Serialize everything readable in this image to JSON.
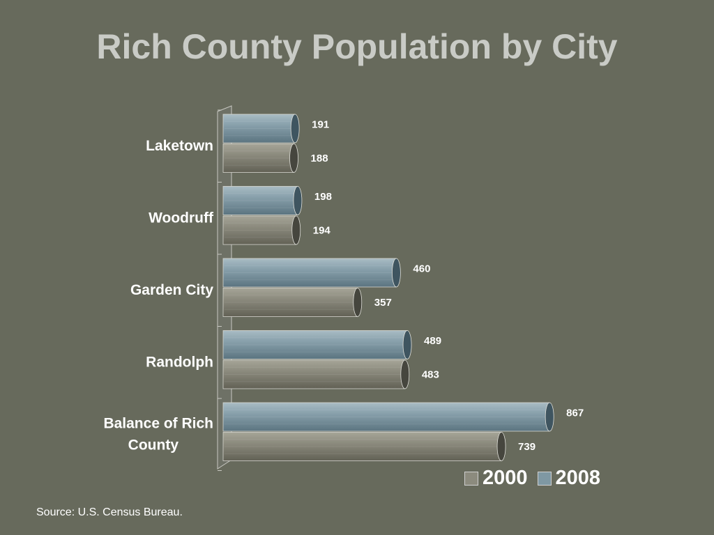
{
  "title": "Rich County Population by City",
  "source": "Source: U.S. Census Bureau.",
  "chart_data": {
    "type": "bar",
    "orientation": "horizontal",
    "style": "3d-cylinder",
    "categories": [
      "Laketown",
      "Woodruff",
      "Garden City",
      "Randolph",
      "Balance of Rich County"
    ],
    "category_lines": [
      [
        "Laketown"
      ],
      [
        "Woodruff"
      ],
      [
        "Garden City"
      ],
      [
        "Randolph"
      ],
      [
        "Balance of Rich",
        "County"
      ]
    ],
    "series": [
      {
        "name": "2008",
        "values": [
          191,
          198,
          460,
          489,
          867
        ],
        "color": "#7f98a3"
      },
      {
        "name": "2000",
        "values": [
          188,
          194,
          357,
          483,
          739
        ],
        "color": "#8c8b7e"
      }
    ],
    "legend": {
      "placement": "bottom-right",
      "order": [
        "2000",
        "2008"
      ]
    },
    "xlim": [
      0,
      1000
    ],
    "grid": false,
    "value_labels": true
  }
}
